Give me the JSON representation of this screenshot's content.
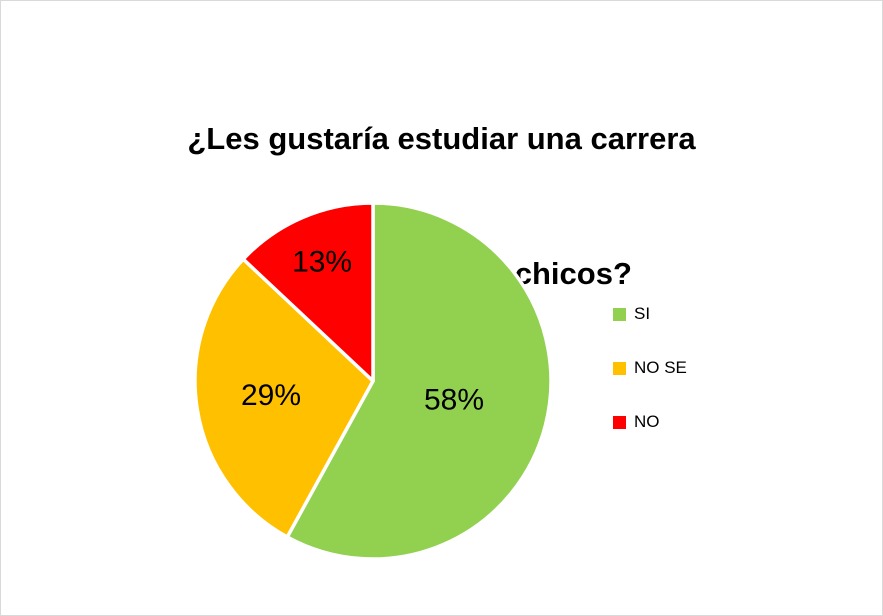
{
  "title": {
    "line1": "¿Les gustaría estudiar una carrera",
    "line2": "de  ciencias a los chicos?"
  },
  "chart_data": {
    "type": "pie",
    "title": "¿Les gustaría estudiar una carrera de ciencias a los chicos?",
    "labels": [
      "SI",
      "NO SE",
      "NO"
    ],
    "values": [
      58,
      29,
      13
    ],
    "unit": "%",
    "slice_labels": [
      "58%",
      "29%",
      "13%"
    ],
    "colors": [
      "#92D050",
      "#FFC000",
      "#FF0000"
    ],
    "label_color": "#000000",
    "start_angle_deg": 0,
    "direction": "clockwise",
    "legend_position": "right",
    "background": "#FFFFFF"
  }
}
